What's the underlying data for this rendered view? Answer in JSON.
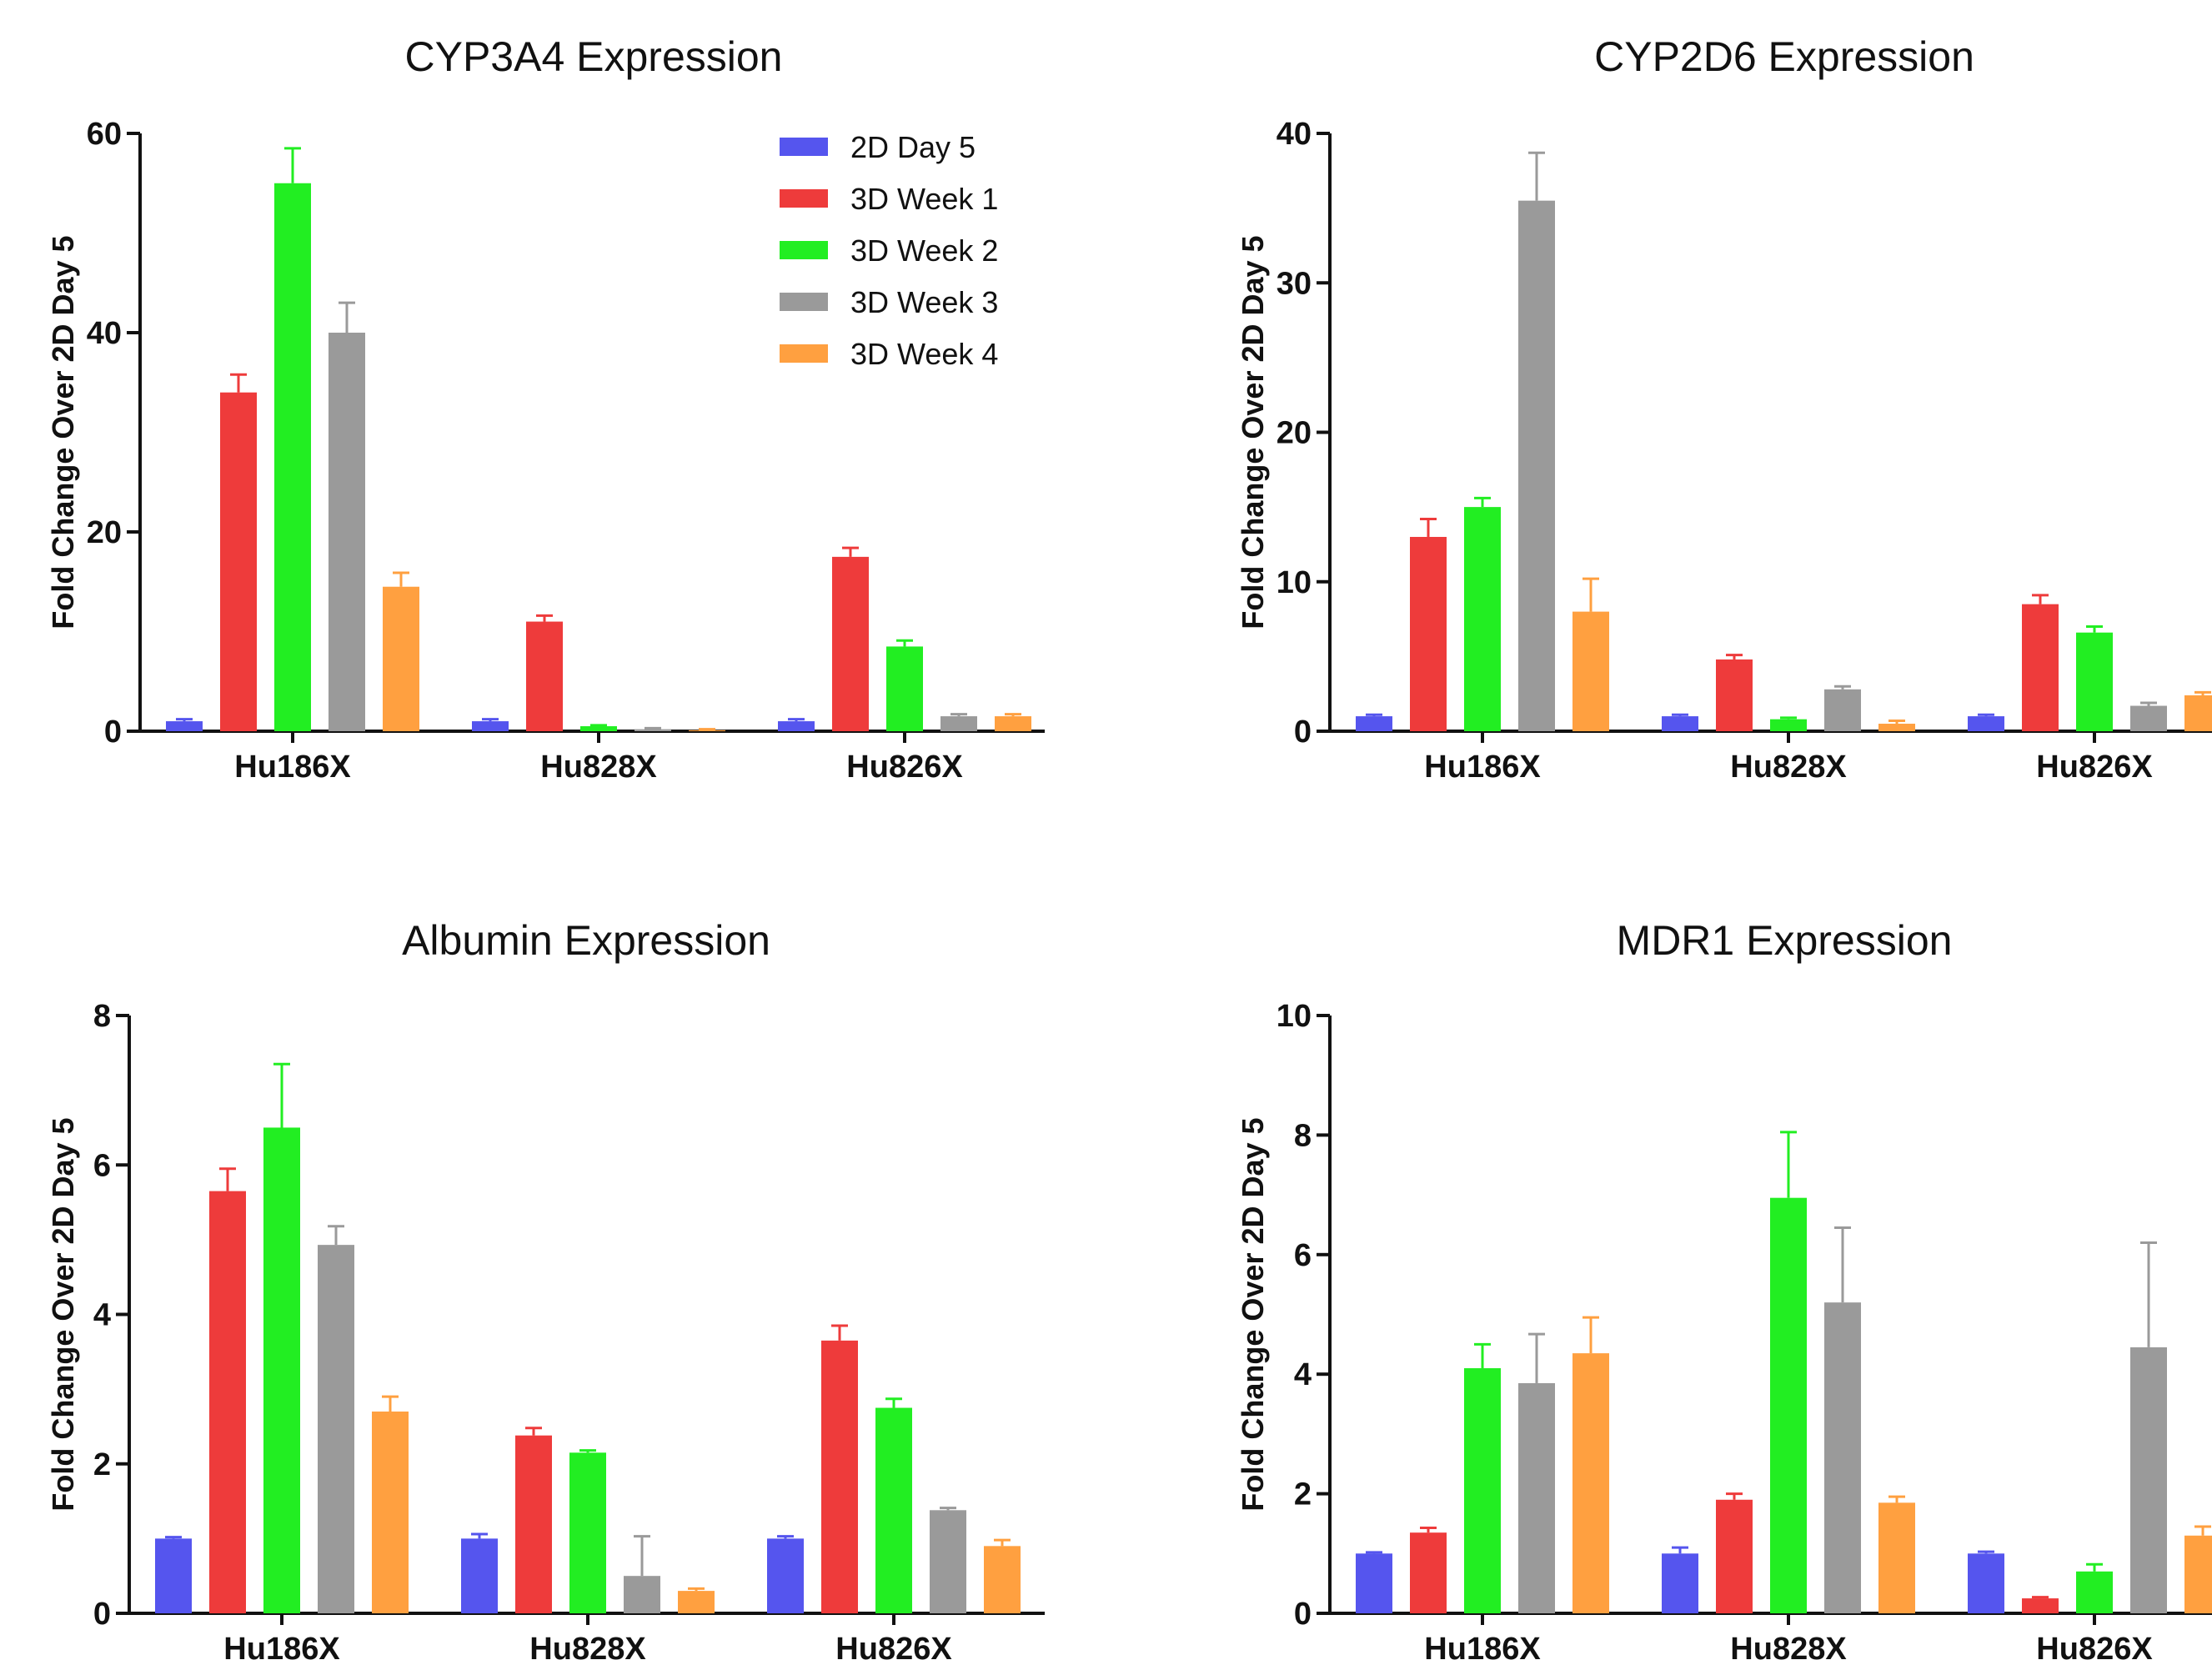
{
  "legend_series": [
    "2D Day 5",
    "3D Week 1",
    "3D Week 2",
    "3D Week 3",
    "3D Week 4"
  ],
  "colors": [
    "#5555ee",
    "#ee3b3b",
    "#22ee22",
    "#9a9a9a",
    "#ffa040"
  ],
  "chart_data": [
    {
      "type": "bar",
      "title": "CYP3A4 Expression",
      "ylabel": "Fold Change Over 2D Day 5",
      "xlabel": "",
      "categories": [
        "Hu186X",
        "Hu828X",
        "Hu826X"
      ],
      "ylim": [
        0,
        60
      ],
      "yticks": [
        "0",
        "20",
        "40",
        "60"
      ],
      "legend": "top-right",
      "series": [
        {
          "name": "2D Day 5",
          "values": [
            1,
            1,
            1
          ],
          "errors": [
            0.2,
            0.2,
            0.2
          ]
        },
        {
          "name": "3D Week 1",
          "values": [
            34,
            11,
            17.5
          ],
          "errors": [
            1.8,
            0.6,
            0.9
          ]
        },
        {
          "name": "3D Week 2",
          "values": [
            55,
            0.5,
            8.5
          ],
          "errors": [
            3.5,
            0.1,
            0.6
          ]
        },
        {
          "name": "3D Week 3",
          "values": [
            40,
            0.2,
            1.5
          ],
          "errors": [
            3,
            0.1,
            0.2
          ]
        },
        {
          "name": "3D Week 4",
          "values": [
            14.5,
            0.1,
            1.5
          ],
          "errors": [
            1.4,
            0.1,
            0.2
          ]
        }
      ]
    },
    {
      "type": "bar",
      "title": "CYP2D6 Expression",
      "ylabel": "Fold Change Over 2D Day 5",
      "xlabel": "",
      "categories": [
        "Hu186X",
        "Hu828X",
        "Hu826X"
      ],
      "ylim": [
        0,
        40
      ],
      "yticks": [
        "0",
        "10",
        "20",
        "30",
        "40"
      ],
      "series": [
        {
          "name": "2D Day 5",
          "values": [
            1,
            1,
            1
          ],
          "errors": [
            0.1,
            0.1,
            0.1
          ]
        },
        {
          "name": "3D Week 1",
          "values": [
            13,
            4.8,
            8.5
          ],
          "errors": [
            1.2,
            0.3,
            0.6
          ]
        },
        {
          "name": "3D Week 2",
          "values": [
            15,
            0.8,
            6.6
          ],
          "errors": [
            0.6,
            0.1,
            0.4
          ]
        },
        {
          "name": "3D Week 3",
          "values": [
            35.5,
            2.8,
            1.7
          ],
          "errors": [
            3.2,
            0.2,
            0.2
          ]
        },
        {
          "name": "3D Week 4",
          "values": [
            8,
            0.5,
            2.4
          ],
          "errors": [
            2.2,
            0.2,
            0.2
          ]
        }
      ]
    },
    {
      "type": "bar",
      "title": "Albumin Expression",
      "ylabel": "Fold Change Over 2D Day 5",
      "xlabel": "",
      "categories": [
        "Hu186X",
        "Hu828X",
        "Hu826X"
      ],
      "ylim": [
        0,
        8
      ],
      "yticks": [
        "0",
        "2",
        "4",
        "6",
        "8"
      ],
      "series": [
        {
          "name": "2D Day 5",
          "values": [
            1,
            1,
            1
          ],
          "errors": [
            0.02,
            0.06,
            0.03
          ]
        },
        {
          "name": "3D Week 1",
          "values": [
            5.65,
            2.38,
            3.65
          ],
          "errors": [
            0.3,
            0.1,
            0.2
          ]
        },
        {
          "name": "3D Week 2",
          "values": [
            6.5,
            2.15,
            2.75
          ],
          "errors": [
            0.85,
            0.03,
            0.12
          ]
        },
        {
          "name": "3D Week 3",
          "values": [
            4.93,
            0.5,
            1.38
          ],
          "errors": [
            0.25,
            0.53,
            0.03
          ]
        },
        {
          "name": "3D Week 4",
          "values": [
            2.7,
            0.3,
            0.9
          ],
          "errors": [
            0.2,
            0.03,
            0.08
          ]
        }
      ]
    },
    {
      "type": "bar",
      "title": "MDR1 Expression",
      "ylabel": "Fold Change Over 2D Day 5",
      "xlabel": "",
      "categories": [
        "Hu186X",
        "Hu828X",
        "Hu826X"
      ],
      "ylim": [
        0,
        10
      ],
      "yticks": [
        "0",
        "2",
        "4",
        "6",
        "8",
        "10"
      ],
      "series": [
        {
          "name": "2D Day 5",
          "values": [
            1,
            1,
            1
          ],
          "errors": [
            0.02,
            0.1,
            0.03
          ]
        },
        {
          "name": "3D Week 1",
          "values": [
            1.35,
            1.9,
            0.25
          ],
          "errors": [
            0.08,
            0.1,
            0.02
          ]
        },
        {
          "name": "3D Week 2",
          "values": [
            4.1,
            6.95,
            0.7
          ],
          "errors": [
            0.4,
            1.1,
            0.12
          ]
        },
        {
          "name": "3D Week 3",
          "values": [
            3.85,
            5.2,
            4.45
          ],
          "errors": [
            0.82,
            1.25,
            1.75
          ]
        },
        {
          "name": "3D Week 4",
          "values": [
            4.35,
            1.85,
            1.3
          ],
          "errors": [
            0.6,
            0.1,
            0.15
          ]
        }
      ]
    }
  ]
}
